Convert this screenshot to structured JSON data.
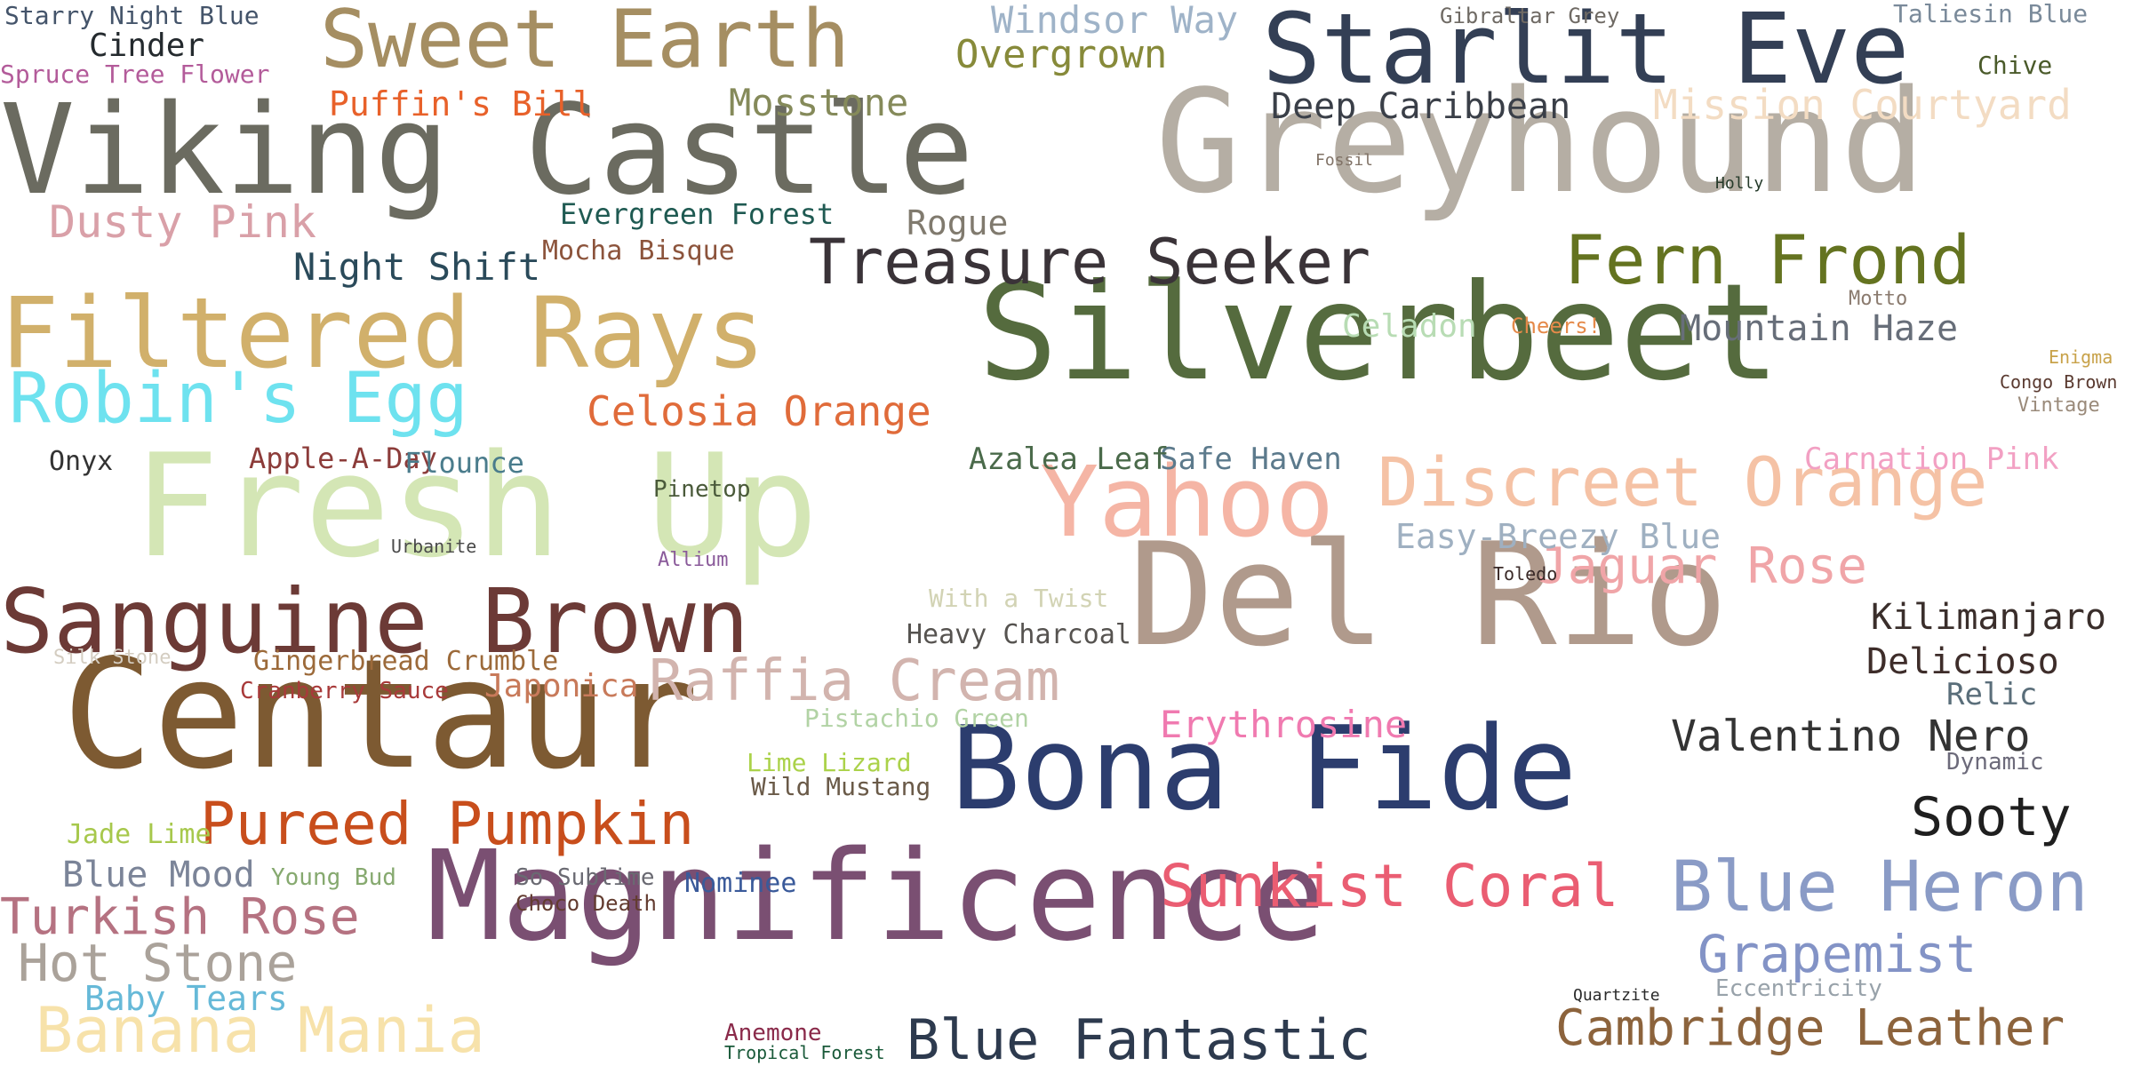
{
  "words": [
    {
      "text": "Magnificence",
      "color": "#7a4f72"
    },
    {
      "text": "Silverbeet",
      "color": "#556b3e"
    },
    {
      "text": "Centaur",
      "color": "#7d5a32"
    },
    {
      "text": "Greyhound",
      "color": "#b5aea4"
    },
    {
      "text": "Viking Castle",
      "color": "#6b6b60"
    },
    {
      "text": "Fresh Up",
      "color": "#d4e6b5"
    },
    {
      "text": "Del Rio",
      "color": "#b09a8c"
    },
    {
      "text": "Bona Fide",
      "color": "#2c3d6e"
    },
    {
      "text": "Starlit Eve",
      "color": "#333f55"
    },
    {
      "text": "Yahoo",
      "color": "#f5b5a5"
    },
    {
      "text": "Filtered Rays",
      "color": "#d1b06b"
    },
    {
      "text": "Sanguine Brown",
      "color": "#6c3a36"
    },
    {
      "text": "Sweet Earth",
      "color": "#a58e62"
    },
    {
      "text": "Discreet Orange",
      "color": "#f5c2a5"
    },
    {
      "text": "Treasure Seeker",
      "color": "#3a3338"
    },
    {
      "text": "Banana Mania",
      "color": "#f7e2aa"
    },
    {
      "text": "Fern Frond",
      "color": "#647320"
    },
    {
      "text": "Pureed Pumpkin",
      "color": "#c84e1c"
    },
    {
      "text": "Blue Heron",
      "color": "#8a9bc6"
    },
    {
      "text": "Robin's Egg",
      "color": "#6ee2ef"
    },
    {
      "text": "Raffia Cream",
      "color": "#d2b4ae"
    },
    {
      "text": "Turkish Rose",
      "color": "#b57281"
    },
    {
      "text": "Sunkist Coral",
      "color": "#ea5d72"
    },
    {
      "text": "Cambridge Leather",
      "color": "#8c633c"
    },
    {
      "text": "Blue Fantastic",
      "color": "#2d3a4e"
    },
    {
      "text": "Hot Stone",
      "color": "#aaa29a"
    },
    {
      "text": "Grapemist",
      "color": "#8393c6"
    },
    {
      "text": "Mosstone",
      "color": "#858a5a"
    },
    {
      "text": "Deep Caribbean",
      "color": "#3a3f48"
    },
    {
      "text": "Jaguar Rose",
      "color": "#f0a5a8"
    },
    {
      "text": "Sooty",
      "color": "#1f1f1f"
    },
    {
      "text": "Dusty Pink",
      "color": "#d9a0a8"
    },
    {
      "text": "Valentino Nero",
      "color": "#333"
    },
    {
      "text": "Mission Courtyard",
      "color": "#f3dcc3"
    },
    {
      "text": "Blue Mood",
      "color": "#7b8498"
    },
    {
      "text": "Baby Tears",
      "color": "#66b9d8"
    },
    {
      "text": "Overgrown",
      "color": "#878a3a"
    },
    {
      "text": "Windsor Way",
      "color": "#9fb3c8"
    },
    {
      "text": "Evergreen Forest",
      "color": "#1f5a52"
    },
    {
      "text": "Celosia Orange",
      "color": "#e06b3a"
    },
    {
      "text": "Mountain Haze",
      "color": "#676e79"
    },
    {
      "text": "Erythrosine",
      "color": "#f07ab0"
    },
    {
      "text": "Carnation Pink",
      "color": "#f2a0c3"
    },
    {
      "text": "Kilimanjaro",
      "color": "#3a2e2b"
    },
    {
      "text": "Delicioso",
      "color": "#3e2d2a"
    },
    {
      "text": "Easy-Breezy Blue",
      "color": "#9fb0c1"
    },
    {
      "text": "Night Shift",
      "color": "#2a4a5a"
    },
    {
      "text": "Mocha Bisque",
      "color": "#8c543c"
    },
    {
      "text": "Puffin's Bill",
      "color": "#e8612a"
    },
    {
      "text": "Cinder",
      "color": "#242a2e"
    },
    {
      "text": "Starry Night Blue",
      "color": "#44546a"
    },
    {
      "text": "Spruce Tree Flower",
      "color": "#b35b9a"
    },
    {
      "text": "Celadon",
      "color": "#b8dcb4"
    },
    {
      "text": "Rogue",
      "color": "#807a6e"
    },
    {
      "text": "Apple-A-Day",
      "color": "#8c3c3a"
    },
    {
      "text": "Safe Haven",
      "color": "#5c7a8c"
    },
    {
      "text": "Azalea Leaf",
      "color": "#4a6a4a"
    },
    {
      "text": "Flounce",
      "color": "#4a7c8c"
    },
    {
      "text": "Onyx",
      "color": "#333333"
    },
    {
      "text": "Gingerbread Crumble",
      "color": "#9c6a3a"
    },
    {
      "text": "Silk Stone",
      "color": "#d4cdc1"
    },
    {
      "text": "Cranberry Sauce",
      "color": "#a83a3a"
    },
    {
      "text": "Japonica",
      "color": "#c87a5a"
    },
    {
      "text": "Heavy Charcoal",
      "color": "#565350"
    },
    {
      "text": "With a Twist",
      "color": "#d2d3b4"
    },
    {
      "text": "Pistachio Green",
      "color": "#b2d3a5"
    },
    {
      "text": "Lime Lizard",
      "color": "#abd24a"
    },
    {
      "text": "Wild Mustang",
      "color": "#6a5a48"
    },
    {
      "text": "Nominee",
      "color": "#3a5a9a"
    },
    {
      "text": "So Sublime",
      "color": "#6a6a72"
    },
    {
      "text": "Choco Death",
      "color": "#633c30"
    },
    {
      "text": "Jade Lime",
      "color": "#a7c84c"
    },
    {
      "text": "Young Bud",
      "color": "#86a96f"
    },
    {
      "text": "Relic",
      "color": "#5a6e7a"
    },
    {
      "text": "Chive",
      "color": "#4a5a2a"
    },
    {
      "text": "Taliesin Blue",
      "color": "#7a8a9a"
    },
    {
      "text": "Gibraltar Grey",
      "color": "#6f6a64"
    },
    {
      "text": "Fossil",
      "color": "#807266"
    },
    {
      "text": "Holly",
      "color": "#253a2a"
    },
    {
      "text": "Motto",
      "color": "#8a7a6e"
    },
    {
      "text": "Cheers!",
      "color": "#e58a4a"
    },
    {
      "text": "Toledo",
      "color": "#3a2a28"
    },
    {
      "text": "Eccentricity",
      "color": "#98a2aa"
    },
    {
      "text": "Quartzite",
      "color": "#2a2a2a"
    },
    {
      "text": "Dynamic",
      "color": "#6c6a7a"
    },
    {
      "text": "Congo Brown",
      "color": "#5a3a30"
    },
    {
      "text": "Vintage",
      "color": "#9a8a7a"
    },
    {
      "text": "Enigma",
      "color": "#c8a24a"
    },
    {
      "text": "Urbanite",
      "color": "#4a4a4a"
    },
    {
      "text": "Allium",
      "color": "#8a5a9a"
    },
    {
      "text": "Pinetop",
      "color": "#4a5a3a"
    },
    {
      "text": "Anemone",
      "color": "#8a2a4a"
    },
    {
      "text": "Tropical Forest",
      "color": "#1a5a3a"
    }
  ]
}
